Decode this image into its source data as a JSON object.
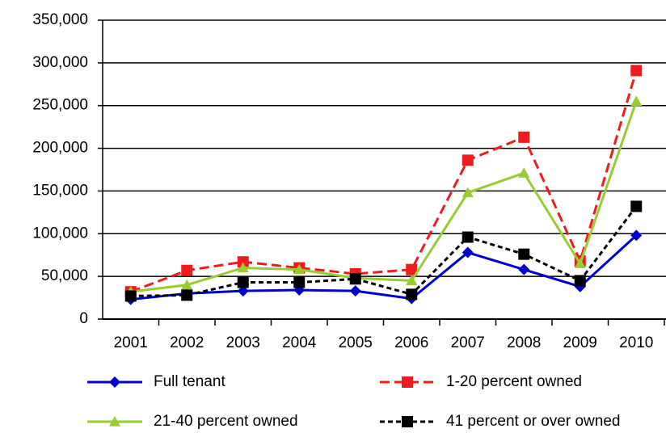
{
  "chart_data": {
    "type": "line",
    "categories": [
      "2001",
      "2002",
      "2003",
      "2004",
      "2005",
      "2006",
      "2007",
      "2008",
      "2009",
      "2010"
    ],
    "series": [
      {
        "name": "Full tenant",
        "color": "#0000cc",
        "marker": "diamond",
        "dash": "none",
        "values": [
          23000,
          30000,
          33000,
          34000,
          33000,
          24000,
          78000,
          58000,
          38000,
          98000
        ]
      },
      {
        "name": "1-20 percent owned",
        "color": "#ee1c1c",
        "marker": "square",
        "dash": "12 6",
        "values": [
          32000,
          57000,
          67000,
          60000,
          53000,
          58000,
          186000,
          213000,
          68000,
          291000
        ]
      },
      {
        "name": "21-40 percent owned",
        "color": "#99cc33",
        "marker": "triangle",
        "dash": "none",
        "values": [
          32000,
          40000,
          60000,
          58000,
          48000,
          45000,
          148000,
          171000,
          65000,
          255000
        ]
      },
      {
        "name": "41 percent or over owned",
        "color": "#000000",
        "marker": "square",
        "dash": "6 4",
        "values": [
          27000,
          28000,
          43000,
          43000,
          47000,
          29000,
          96000,
          76000,
          45000,
          132000
        ]
      }
    ],
    "ylim": [
      0,
      350000
    ],
    "yticks": [
      0,
      {
        "value": 50000,
        "label": "50,000"
      },
      {
        "value": 100000,
        "label": "100,000"
      },
      {
        "value": 150000,
        "label": "150,000"
      },
      {
        "value": 200000,
        "label": "200,000"
      },
      {
        "value": 250000,
        "label": "250,000"
      },
      {
        "value": 300000,
        "label": "300,000"
      },
      {
        "value": 350000,
        "label": "350,000"
      }
    ],
    "grid": true
  }
}
